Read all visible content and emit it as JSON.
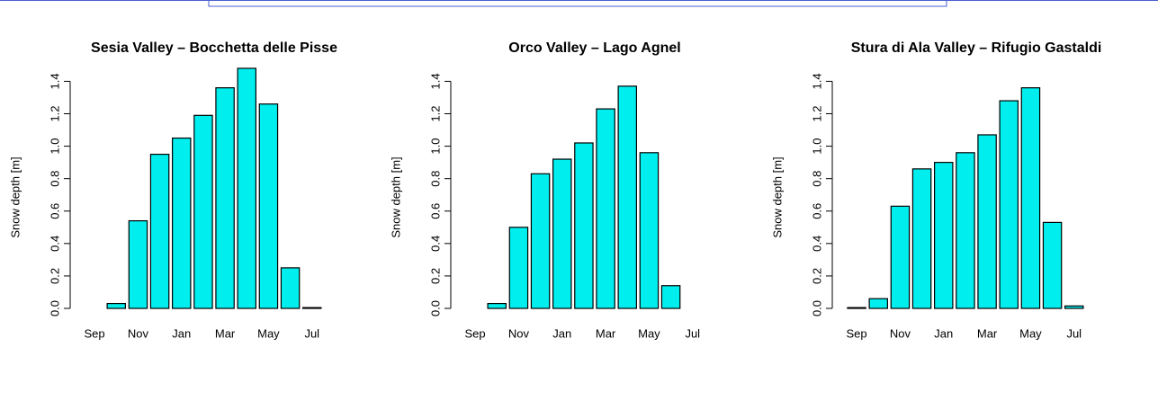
{
  "chart_data": [
    {
      "type": "bar",
      "title": "Sesia Valley – Bocchetta delle Pisse",
      "ylabel": "Snow depth [m]",
      "categories": [
        "Sep",
        null,
        "Nov",
        null,
        "Jan",
        null,
        "Mar",
        null,
        "May",
        null,
        "Jul",
        null
      ],
      "values": [
        0,
        0.03,
        0.54,
        0.95,
        1.05,
        1.19,
        1.36,
        1.48,
        1.26,
        0.25,
        0.005,
        0
      ],
      "color": "#00eeee",
      "ylim": [
        0,
        1.48
      ],
      "yticks": [
        {
          "value": 0,
          "label": "0.0"
        },
        0.2,
        0.4,
        0.6,
        0.8,
        {
          "value": 1,
          "label": "1.0"
        },
        1.2,
        1.4
      ]
    },
    {
      "type": "bar",
      "title": "Orco Valley – Lago Agnel",
      "ylabel": "Snow depth [m]",
      "categories": [
        "Sep",
        null,
        "Nov",
        null,
        "Jan",
        null,
        "Mar",
        null,
        "May",
        null,
        "Jul",
        null
      ],
      "values": [
        0,
        0.03,
        0.5,
        0.83,
        0.92,
        1.02,
        1.23,
        1.37,
        0.96,
        0.14,
        0,
        0
      ],
      "color": "#00eeee",
      "ylim": [
        0,
        1.48
      ],
      "yticks": [
        {
          "value": 0,
          "label": "0.0"
        },
        0.2,
        0.4,
        0.6,
        0.8,
        {
          "value": 1,
          "label": "1.0"
        },
        1.2,
        1.4
      ]
    },
    {
      "type": "bar",
      "title": "Stura di Ala Valley – Rifugio Gastaldi",
      "ylabel": "Snow depth [m]",
      "categories": [
        "Sep",
        null,
        "Nov",
        null,
        "Jan",
        null,
        "Mar",
        null,
        "May",
        null,
        "Jul",
        null
      ],
      "values": [
        0.005,
        0.06,
        0.63,
        0.86,
        0.9,
        0.96,
        1.07,
        1.28,
        1.36,
        0.53,
        0.015,
        0
      ],
      "color": "#00eeee",
      "ylim": [
        0,
        1.48
      ],
      "yticks": [
        {
          "value": 0,
          "label": "0.0"
        },
        0.2,
        0.4,
        0.6,
        0.8,
        {
          "value": 1,
          "label": "1.0"
        },
        1.2,
        1.4
      ]
    }
  ]
}
